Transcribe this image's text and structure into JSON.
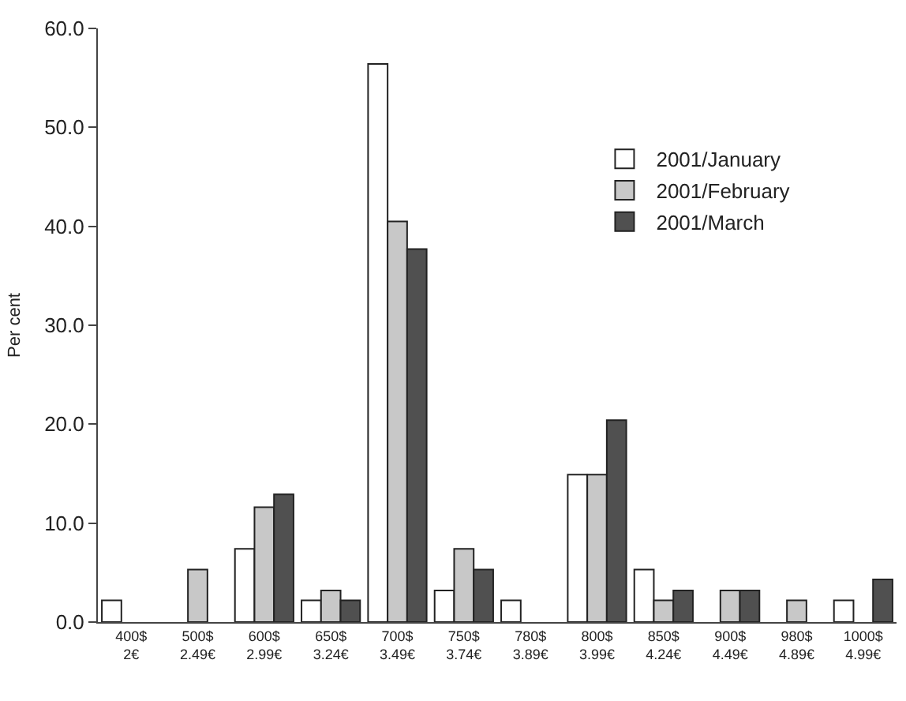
{
  "chart_data": {
    "type": "bar",
    "ylabel": "Per cent",
    "categories": [
      "400$\n2€",
      "500$\n2.49€",
      "600$\n2.99€",
      "650$\n3.24€",
      "700$\n3.49€",
      "750$\n3.74€",
      "780$\n3.89€",
      "800$\n3.99€",
      "850$\n4.24€",
      "900$\n4.49€",
      "980$\n4.89€",
      "1000$\n4.99€"
    ],
    "series": [
      {
        "name": "2001/January",
        "color": "#ffffff",
        "values": [
          2.2,
          null,
          7.4,
          2.2,
          56.4,
          3.2,
          2.2,
          14.9,
          5.3,
          null,
          null,
          2.2
        ]
      },
      {
        "name": "2001/February",
        "color": "#c8c8c8",
        "values": [
          null,
          5.3,
          11.6,
          3.2,
          40.5,
          7.4,
          null,
          14.9,
          2.2,
          3.2,
          2.2,
          null
        ]
      },
      {
        "name": "2001/March",
        "color": "#505050",
        "values": [
          null,
          null,
          12.9,
          2.2,
          37.7,
          5.3,
          null,
          20.4,
          3.2,
          3.2,
          null,
          4.3
        ]
      }
    ],
    "ylim": [
      0,
      60
    ],
    "yticks": [
      {
        "value": 0,
        "label": "0.0"
      },
      {
        "value": 10,
        "label": "10.0"
      },
      {
        "value": 20,
        "label": "20.0"
      },
      {
        "value": 30,
        "label": "30.0"
      },
      {
        "value": 40,
        "label": "40.0"
      },
      {
        "value": 50,
        "label": "50.0"
      },
      {
        "value": 60,
        "label": "60.0"
      }
    ],
    "grid": false,
    "legend": "top right"
  }
}
